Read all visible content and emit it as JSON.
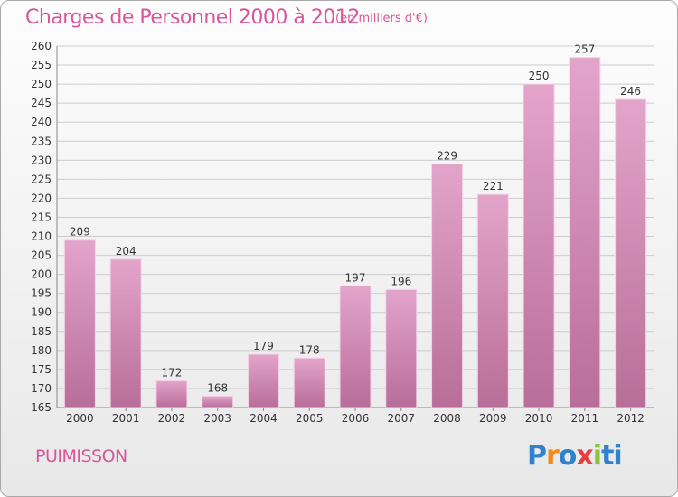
{
  "title": "Charges de Personnel 2000 à 2012",
  "subtitle": "(en milliers d'€)",
  "commune": "PUIMISSON",
  "logo": {
    "text": "Proxiti",
    "parts": [
      "P",
      "r",
      "o",
      "x",
      "i",
      "ti"
    ]
  },
  "colors": {
    "title": "#d9559a",
    "bar_top": "#e3a4cb",
    "bar_bottom": "#b86e99",
    "grid": "#cccccc"
  },
  "chart_data": {
    "type": "bar",
    "categories": [
      "2000",
      "2001",
      "2002",
      "2003",
      "2004",
      "2005",
      "2006",
      "2007",
      "2008",
      "2009",
      "2010",
      "2011",
      "2012"
    ],
    "values": [
      209,
      204,
      172,
      168,
      179,
      178,
      197,
      196,
      229,
      221,
      250,
      257,
      246
    ],
    "ylim": [
      165,
      260
    ],
    "yticks": [
      165,
      170,
      175,
      180,
      185,
      190,
      195,
      200,
      205,
      210,
      215,
      220,
      225,
      230,
      235,
      240,
      245,
      250,
      255,
      260
    ],
    "grid": true,
    "title": "Charges de Personnel 2000 à 2012",
    "xlabel": "",
    "ylabel": ""
  }
}
